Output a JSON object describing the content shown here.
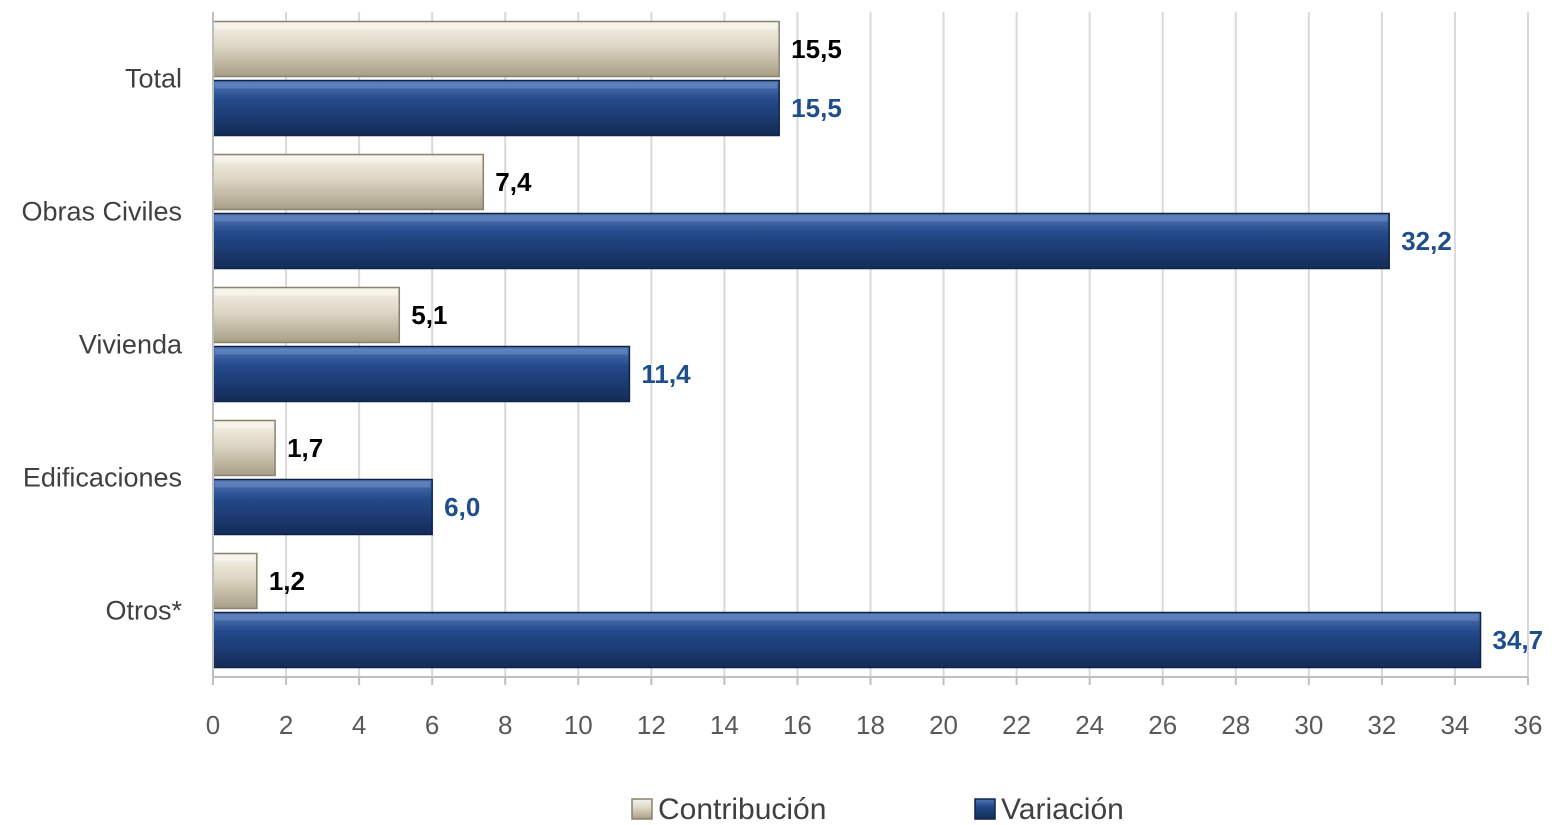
{
  "chart_data": {
    "type": "bar",
    "orientation": "horizontal",
    "title": "",
    "xlabel": "",
    "ylabel": "",
    "categories": [
      "Total",
      "Obras Civiles",
      "Vivienda",
      "Edificaciones",
      "Otros*"
    ],
    "series": [
      {
        "name": "Contribución",
        "values": [
          15.5,
          7.4,
          5.1,
          1.7,
          1.2
        ],
        "labels": [
          "15,5",
          "7,4",
          "5,1",
          "1,7",
          "1,2"
        ],
        "color": "#d8d0bd",
        "label_color": "#000000"
      },
      {
        "name": "Variación",
        "values": [
          15.5,
          32.2,
          11.4,
          6.0,
          34.7
        ],
        "labels": [
          "15,5",
          "32,2",
          "11,4",
          "6,0",
          "34,7"
        ],
        "color": "#1f3c73",
        "label_color": "#1f4e8c"
      }
    ],
    "xlim": [
      0,
      36
    ],
    "xticks": [
      "0",
      "2",
      "4",
      "6",
      "8",
      "10",
      "12",
      "14",
      "16",
      "18",
      "20",
      "22",
      "24",
      "26",
      "28",
      "30",
      "32",
      "34",
      "36"
    ],
    "grid": "vertical",
    "legend": "bottom"
  }
}
